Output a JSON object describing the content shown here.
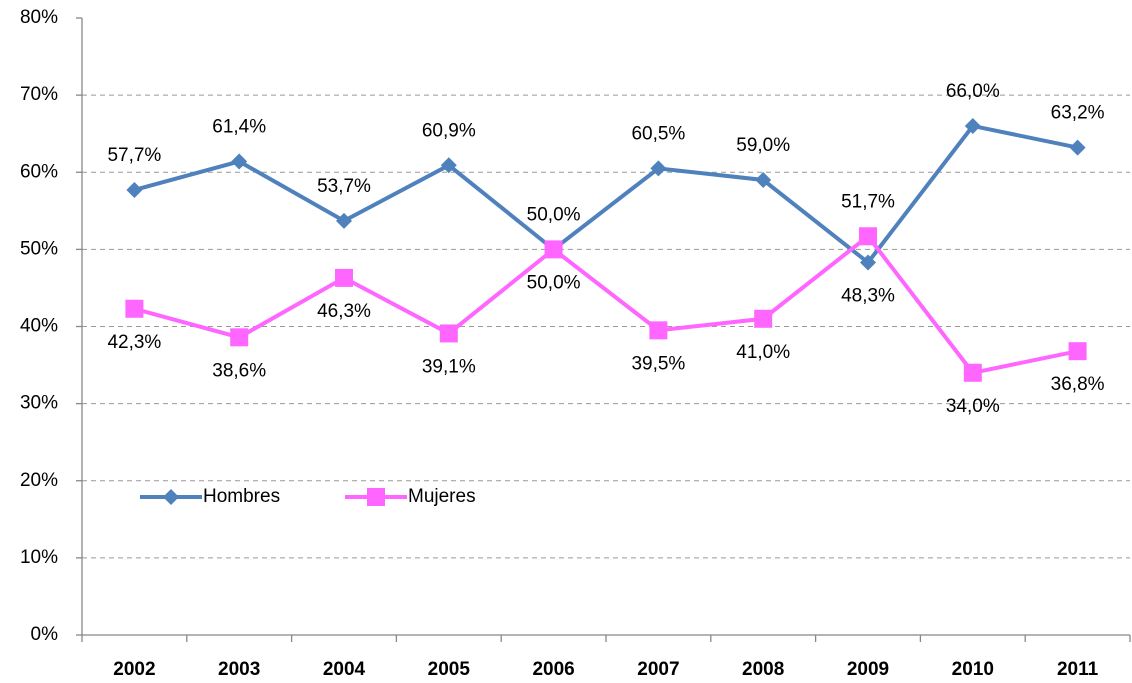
{
  "chart_data": {
    "type": "line",
    "categories": [
      "2002",
      "2003",
      "2004",
      "2005",
      "2006",
      "2007",
      "2008",
      "2009",
      "2010",
      "2011"
    ],
    "series": [
      {
        "name": "Hombres",
        "color": "#4f81bd",
        "label_color": "#1f70b8",
        "marker": "diamond",
        "values": [
          57.7,
          61.4,
          53.7,
          60.9,
          50.0,
          60.5,
          59.0,
          48.3,
          66.0,
          63.2
        ],
        "value_labels": [
          "57,7%",
          "61,4%",
          "53,7%",
          "60,9%",
          "50,0%",
          "60,5%",
          "59,0%",
          "48,3%",
          "66,0%",
          "63,2%"
        ]
      },
      {
        "name": "Mujeres",
        "color": "#ff66ff",
        "label_color": "#e83ae0",
        "marker": "square",
        "values": [
          42.3,
          38.6,
          46.3,
          39.1,
          50.0,
          39.5,
          41.0,
          51.7,
          34.0,
          36.8
        ],
        "value_labels": [
          "42,3%",
          "38,6%",
          "46,3%",
          "39,1%",
          "50,0%",
          "39,5%",
          "41,0%",
          "51,7%",
          "34,0%",
          "36,8%"
        ]
      }
    ],
    "ylim": [
      0,
      80
    ],
    "yticks": [
      {
        "value": 0,
        "label": "0%"
      },
      {
        "value": 10,
        "label": "10%"
      },
      {
        "value": 20,
        "label": "20%"
      },
      {
        "value": 30,
        "label": "30%"
      },
      {
        "value": 40,
        "label": "40%"
      },
      {
        "value": 50,
        "label": "50%"
      },
      {
        "value": 60,
        "label": "60%"
      },
      {
        "value": 70,
        "label": "70%"
      },
      {
        "value": 80,
        "label": "80%"
      }
    ],
    "grid": true,
    "legend": "lower left"
  }
}
